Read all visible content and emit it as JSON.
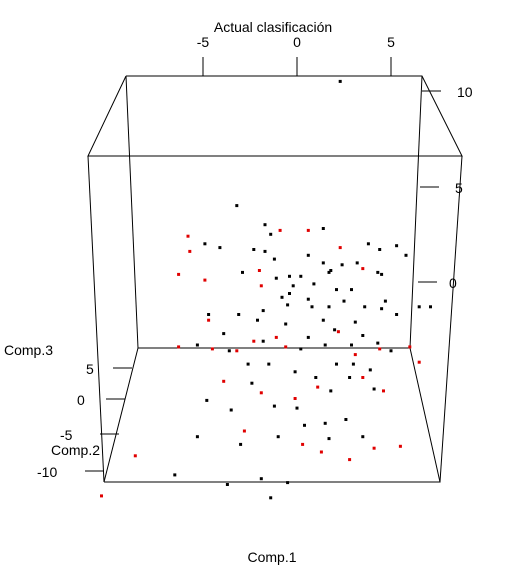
{
  "chart_data": {
    "type": "scatter",
    "title": "Actual clasificación",
    "xlabel": "Comp.1",
    "ylabel": "Comp.2",
    "zlabel": "Comp.3",
    "x_ticks": [
      "-5",
      "0",
      "5"
    ],
    "y_ticks": [
      "-10",
      "-5",
      "0",
      "5"
    ],
    "z_ticks": [
      "0",
      "5",
      "10"
    ],
    "colors": {
      "class_a": "#000000",
      "class_b": "#e00000"
    },
    "grid": false,
    "legend": "none",
    "series": [
      {
        "color_key": "class_a",
        "points": [
          [
            -3.2,
            4
          ],
          [
            -1.7,
            3
          ],
          [
            -1.4,
            2.5
          ],
          [
            1.4,
            2.8
          ],
          [
            -4.9,
            2
          ],
          [
            -4.1,
            1.8
          ],
          [
            -2.3,
            1.7
          ],
          [
            -1.7,
            1.6
          ],
          [
            -1.2,
            1.2
          ],
          [
            0.6,
            1.4
          ],
          [
            1.4,
            1
          ],
          [
            2.4,
            0.9
          ],
          [
            3.8,
            2
          ],
          [
            3.2,
            1
          ],
          [
            4.4,
            1.7
          ],
          [
            5.3,
            1.9
          ],
          [
            5.8,
            1.4
          ],
          [
            4.5,
            0.4
          ],
          [
            4.3,
            0.5
          ],
          [
            1.7,
            0.5
          ],
          [
            0.2,
            0.3
          ],
          [
            -1.1,
            0.2
          ],
          [
            -0.4,
            0.3
          ],
          [
            -0.2,
            -0.2
          ],
          [
            -2.9,
            0.5
          ],
          [
            -4.7,
            -1.7
          ],
          [
            -3.1,
            -1.7
          ],
          [
            -0.8,
            -0.8
          ],
          [
            -0.4,
            -0.6
          ],
          [
            -0.5,
            -1.2
          ],
          [
            0.6,
            -0.9
          ],
          [
            0.8,
            -1.3
          ],
          [
            1.7,
            -1.3
          ],
          [
            2.9,
            -0.4
          ],
          [
            3.6,
            -1.3
          ],
          [
            2.1,
            -0.4
          ],
          [
            4.5,
            -1.4
          ],
          [
            5.3,
            -1.7
          ],
          [
            6.5,
            -1.3
          ],
          [
            7.1,
            -1.3
          ],
          [
            -3.9,
            -2.7
          ],
          [
            -1.8,
            -3.1
          ],
          [
            2,
            -2.5
          ],
          [
            0.6,
            -2.9
          ],
          [
            1.5,
            -3.3
          ],
          [
            2.9,
            -3.3
          ],
          [
            3.5,
            -2.8
          ],
          [
            4.3,
            -3.2
          ],
          [
            5,
            -3.6
          ],
          [
            -5.3,
            -3.3
          ],
          [
            -3.6,
            -3.6
          ],
          [
            -2.6,
            -4.3
          ],
          [
            -1.5,
            -4.3
          ],
          [
            -0.1,
            -4.7
          ],
          [
            1,
            -5
          ],
          [
            2.1,
            -4.3
          ],
          [
            3,
            -4.3
          ],
          [
            3.9,
            -4.6
          ],
          [
            1.8,
            -5.7
          ],
          [
            -4.8,
            -6.2
          ],
          [
            -3.5,
            -6.7
          ],
          [
            -1.2,
            -6.5
          ],
          [
            0,
            -6.6
          ],
          [
            0.4,
            -7.5
          ],
          [
            1.5,
            -7.4
          ],
          [
            2.6,
            -7.2
          ],
          [
            -5.3,
            -8.1
          ],
          [
            -3,
            -8.5
          ],
          [
            -1,
            -8.1
          ],
          [
            1.7,
            -8.2
          ],
          [
            3.5,
            -8.1
          ],
          [
            -6.5,
            -10.1
          ],
          [
            -3.7,
            -10.6
          ],
          [
            -1.9,
            -10.3
          ],
          [
            -0.5,
            -10.5
          ],
          [
            -1.4,
            -11.3
          ],
          [
            1.8,
            0.6
          ],
          [
            2.5,
            -1
          ],
          [
            3.1,
            -2.1
          ],
          [
            0.9,
            -0.1
          ],
          [
            -1.8,
            -1.5
          ],
          [
            -0.6,
            -2.2
          ],
          [
            1.4,
            -2
          ],
          [
            4.7,
            -1
          ],
          [
            -2.1,
            -2
          ],
          [
            0.2,
            -3.5
          ],
          [
            2.8,
            -5
          ],
          [
            -2.4,
            -5.3
          ],
          [
            4.1,
            -5.6
          ],
          [
            2.3,
            10.5
          ]
        ]
      },
      {
        "color_key": "class_b",
        "points": [
          [
            -5.8,
            2.4
          ],
          [
            -5.7,
            1.6
          ],
          [
            -6.3,
            0.4
          ],
          [
            -4.9,
            0.1
          ],
          [
            -2,
            0.6
          ],
          [
            -0.9,
            2.7
          ],
          [
            0.6,
            2.7
          ],
          [
            2.3,
            1.8
          ],
          [
            3.5,
            0.7
          ],
          [
            -1.9,
            -0.2
          ],
          [
            -4.7,
            -2
          ],
          [
            -6.3,
            -3.4
          ],
          [
            -4.5,
            -3.5
          ],
          [
            -3.2,
            -3.6
          ],
          [
            -2.3,
            -3.1
          ],
          [
            -1.1,
            -2.9
          ],
          [
            -0.6,
            -3.4
          ],
          [
            2.2,
            -2.6
          ],
          [
            3.1,
            -3.8
          ],
          [
            4.4,
            -3.5
          ],
          [
            6,
            -3.4
          ],
          [
            6.5,
            -4.2
          ],
          [
            -3.9,
            -5.2
          ],
          [
            -1.9,
            -5.8
          ],
          [
            -0.1,
            -6.1
          ],
          [
            1.1,
            -5.5
          ],
          [
            3.5,
            -5
          ],
          [
            4.6,
            -5.7
          ],
          [
            -2.8,
            -7.8
          ],
          [
            0.3,
            -8.5
          ],
          [
            1.3,
            -8.9
          ],
          [
            2.8,
            -9.3
          ],
          [
            4.1,
            -8.7
          ],
          [
            5.5,
            -8.6
          ],
          [
            -10.4,
            -11.2
          ],
          [
            -8.6,
            -9.1
          ]
        ]
      }
    ]
  }
}
